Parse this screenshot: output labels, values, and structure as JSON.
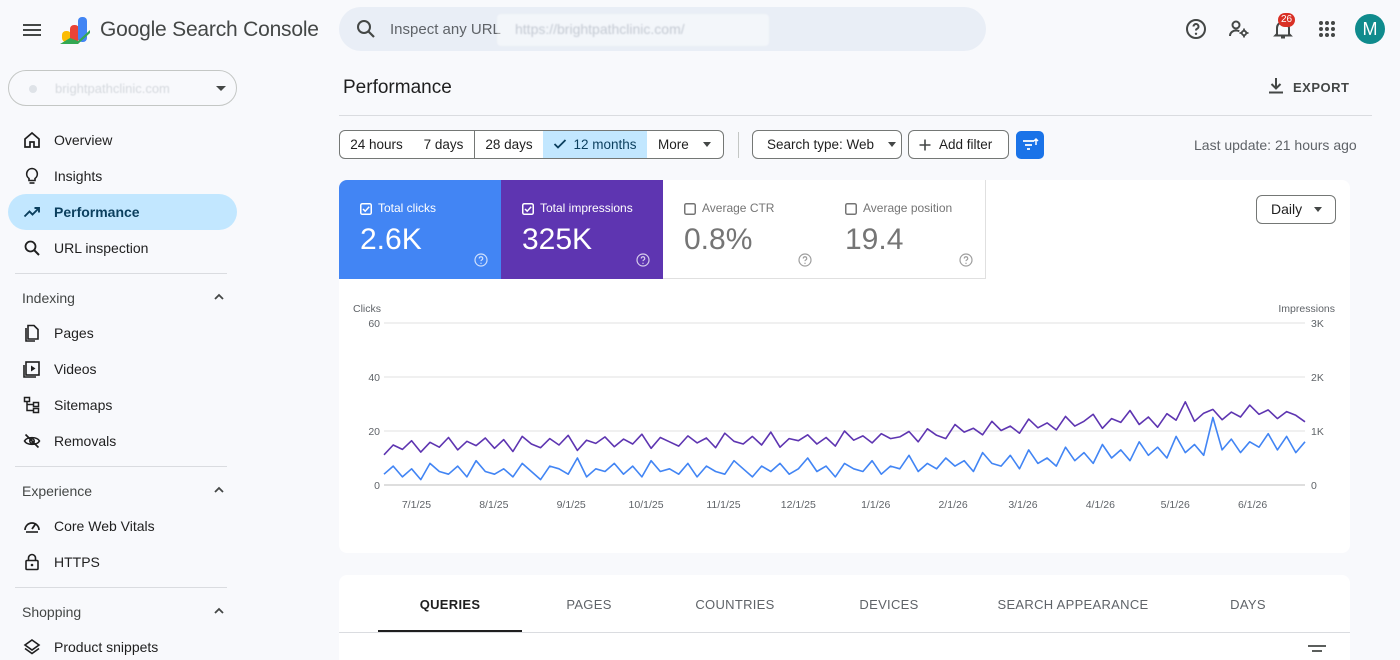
{
  "header": {
    "brand": "Google Search Console",
    "search_placeholder": "Inspect any URL",
    "search_hint": "https://brightpathclinic.com/",
    "notifications_count": "26",
    "avatar_letter": "M"
  },
  "sidebar": {
    "property": "brightpathclinic.com",
    "top_items": [
      {
        "label": "Overview",
        "icon": "home-icon"
      },
      {
        "label": "Insights",
        "icon": "lightbulb-icon"
      },
      {
        "label": "Performance",
        "icon": "trending-up-icon",
        "active": true
      },
      {
        "label": "URL inspection",
        "icon": "search-icon"
      }
    ],
    "sections": [
      {
        "title": "Indexing",
        "items": [
          {
            "label": "Pages",
            "icon": "pages-icon"
          },
          {
            "label": "Videos",
            "icon": "video-icon"
          },
          {
            "label": "Sitemaps",
            "icon": "sitemap-icon"
          },
          {
            "label": "Removals",
            "icon": "eye-off-icon"
          }
        ]
      },
      {
        "title": "Experience",
        "items": [
          {
            "label": "Core Web Vitals",
            "icon": "speedometer-icon"
          },
          {
            "label": "HTTPS",
            "icon": "lock-icon"
          }
        ]
      },
      {
        "title": "Shopping",
        "items": [
          {
            "label": "Product snippets",
            "icon": "layers-icon"
          }
        ]
      }
    ]
  },
  "main": {
    "title": "Performance",
    "export_label": "EXPORT",
    "date_ranges": [
      "24 hours",
      "7 days",
      "28 days",
      "12 months",
      "More"
    ],
    "selected_range": "12 months",
    "search_type": "Search type: Web",
    "add_filter": "Add filter",
    "last_update": "Last update: 21 hours ago",
    "granularity": "Daily",
    "metrics": {
      "clicks": {
        "label": "Total clicks",
        "value": "2.6K"
      },
      "impressions": {
        "label": "Total impressions",
        "value": "325K"
      },
      "ctr": {
        "label": "Average CTR",
        "value": "0.8%"
      },
      "position": {
        "label": "Average position",
        "value": "19.4"
      }
    },
    "tabs": [
      "QUERIES",
      "PAGES",
      "COUNTRIES",
      "DEVICES",
      "SEARCH APPEARANCE",
      "DAYS"
    ],
    "active_tab": "QUERIES"
  },
  "colors": {
    "clicks": "#4285f4",
    "impressions": "#5e35b1",
    "selected": "#c2e7ff",
    "accent": "#1a73e8"
  },
  "chart_data": {
    "type": "line",
    "left_axis_label": "Clicks",
    "right_axis_label": "Impressions",
    "left_ticks": [
      "60",
      "40",
      "20",
      "0"
    ],
    "right_ticks": [
      "3K",
      "2K",
      "1K",
      "0"
    ],
    "ylim_left": [
      0,
      60
    ],
    "ylim_right": [
      0,
      3000
    ],
    "x_ticks": [
      "7/1/25",
      "8/1/25",
      "9/1/25",
      "10/1/25",
      "11/1/25",
      "12/1/25",
      "1/1/26",
      "2/1/26",
      "3/1/26",
      "4/1/26",
      "5/1/26",
      "6/1/26"
    ],
    "x_range": [
      "6/18/25",
      "6/22/26"
    ],
    "grid": true,
    "series": [
      {
        "name": "Total impressions",
        "axis": "right",
        "values": [
          560,
          740,
          660,
          820,
          610,
          790,
          700,
          880,
          650,
          810,
          730,
          870,
          680,
          840,
          620,
          900,
          760,
          690,
          860,
          740,
          920,
          640,
          830,
          770,
          890,
          710,
          850,
          760,
          940,
          680,
          880,
          800,
          720,
          910,
          780,
          870,
          690,
          960,
          810,
          760,
          900,
          740,
          980,
          700,
          860,
          820,
          930,
          760,
          880,
          720,
          1000,
          830,
          910,
          780,
          950,
          860,
          890,
          990,
          800,
          1040,
          920,
          860,
          1120,
          980,
          1050,
          930,
          1180,
          1010,
          1090,
          960,
          1220,
          1060,
          1150,
          1020,
          1270,
          1090,
          1180,
          1310,
          1050,
          1230,
          1160,
          1380,
          1120,
          1260,
          1070,
          1320,
          1200,
          1540,
          1180,
          1330,
          1400,
          1210,
          1350,
          1260,
          1480,
          1310,
          1390,
          1230,
          1360,
          1290,
          1170
        ]
      },
      {
        "name": "Total clicks",
        "axis": "left",
        "values": [
          4,
          7,
          3,
          6,
          2,
          8,
          5,
          4,
          7,
          3,
          9,
          5,
          4,
          6,
          3,
          8,
          5,
          2,
          7,
          6,
          4,
          10,
          3,
          6,
          5,
          8,
          4,
          7,
          3,
          9,
          5,
          6,
          4,
          8,
          3,
          7,
          5,
          4,
          9,
          6,
          3,
          7,
          5,
          8,
          4,
          6,
          10,
          5,
          7,
          3,
          8,
          6,
          5,
          9,
          4,
          7,
          6,
          11,
          5,
          8,
          6,
          10,
          7,
          9,
          5,
          12,
          8,
          7,
          11,
          6,
          13,
          8,
          10,
          7,
          14,
          9,
          12,
          8,
          15,
          10,
          13,
          9,
          16,
          11,
          14,
          10,
          18,
          12,
          15,
          11,
          25,
          13,
          17,
          12,
          16,
          14,
          19,
          13,
          18,
          12,
          16
        ]
      }
    ]
  }
}
